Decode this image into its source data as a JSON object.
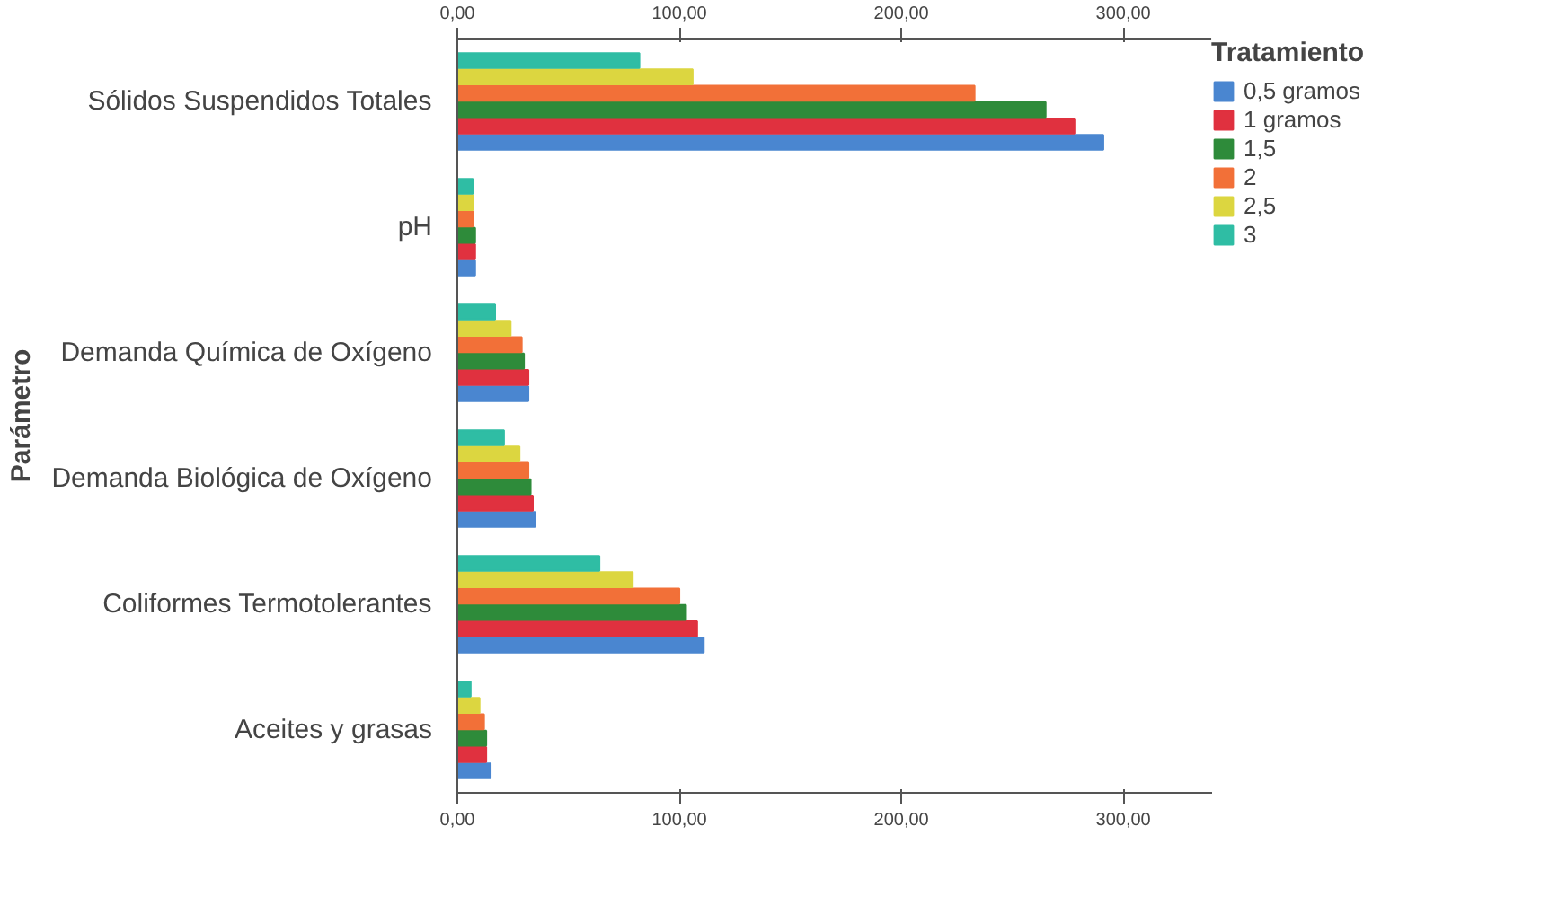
{
  "chart_data": {
    "type": "bar",
    "orientation": "horizontal",
    "ylabel": "Parámetro",
    "legend_title": "Tratamiento",
    "legend": "top right",
    "grid": false,
    "categories": [
      "Sólidos Suspendidos Totales",
      "pH",
      "Demanda Química de Oxígeno",
      "Demanda Biológica de Oxígeno",
      "Coliformes Termotolerantes",
      "Aceites y grasas"
    ],
    "xlim": [
      0,
      340
    ],
    "xticks": [
      {
        "value": 0,
        "label": "0,00"
      },
      {
        "value": 100,
        "label": "100,00"
      },
      {
        "value": 200,
        "label": "200,00"
      },
      {
        "value": 300,
        "label": "300,00"
      }
    ],
    "x2lim": [
      0,
      340
    ],
    "x2ticks": [
      {
        "value": 0,
        "label": "0,00"
      },
      {
        "value": 100,
        "label": "100,00"
      },
      {
        "value": 200,
        "label": "200,00"
      },
      {
        "value": 300,
        "label": "300,00"
      }
    ],
    "series": [
      {
        "name": "0,5 gramos",
        "color": "#4a86d0",
        "values": [
          291,
          8,
          32,
          35,
          111,
          15
        ]
      },
      {
        "name": "1 gramos",
        "color": "#e0313f",
        "values": [
          278,
          8,
          32,
          34,
          108,
          13
        ]
      },
      {
        "name": "1,5",
        "color": "#2e8b3a",
        "values": [
          265,
          8,
          30,
          33,
          103,
          13
        ]
      },
      {
        "name": "2",
        "color": "#f27038",
        "values": [
          233,
          7,
          29,
          32,
          100,
          12
        ]
      },
      {
        "name": "2,5",
        "color": "#dcd640",
        "values": [
          106,
          7,
          24,
          28,
          79,
          10
        ]
      },
      {
        "name": "3",
        "color": "#2fbda4",
        "values": [
          82,
          7,
          17,
          21,
          64,
          6
        ]
      }
    ]
  }
}
